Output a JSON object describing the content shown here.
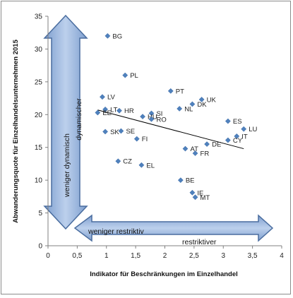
{
  "chart_data": {
    "type": "scatter",
    "title": "",
    "xlabel": "Indikator für Beschränkungen im Einzelhandel",
    "ylabel": "Abwanderungsquote für Einzelhandelsunternehmen 2015",
    "xlim": [
      0,
      4
    ],
    "ylim": [
      0,
      35
    ],
    "xticks": [
      "0",
      "0,5",
      "1",
      "1,5",
      "2",
      "2,5",
      "3",
      "3,5",
      "4"
    ],
    "yticks": [
      "0",
      "5",
      "10",
      "15",
      "20",
      "25",
      "30",
      "35"
    ],
    "grid": false,
    "marker_color": "#4f81bd",
    "points": [
      {
        "label": "BG",
        "x": 1.02,
        "y": 32.0
      },
      {
        "label": "PL",
        "x": 1.32,
        "y": 26.0
      },
      {
        "label": "PT",
        "x": 2.1,
        "y": 23.6
      },
      {
        "label": "UK",
        "x": 2.63,
        "y": 22.3
      },
      {
        "label": "LV",
        "x": 0.93,
        "y": 22.7
      },
      {
        "label": "DK",
        "x": 2.47,
        "y": 21.6
      },
      {
        "label": "NL",
        "x": 2.25,
        "y": 20.9
      },
      {
        "label": "LT",
        "x": 0.98,
        "y": 20.8
      },
      {
        "label": "EE",
        "x": 0.85,
        "y": 20.3
      },
      {
        "label": "HR",
        "x": 1.22,
        "y": 20.6
      },
      {
        "label": "SI",
        "x": 1.77,
        "y": 20.2
      },
      {
        "label": "HU",
        "x": 1.62,
        "y": 19.7
      },
      {
        "label": "RO",
        "x": 1.77,
        "y": 19.3
      },
      {
        "label": "ES",
        "x": 3.08,
        "y": 19.0
      },
      {
        "label": "LU",
        "x": 3.35,
        "y": 17.8
      },
      {
        "label": "IT",
        "x": 3.23,
        "y": 16.7
      },
      {
        "label": "CY",
        "x": 3.08,
        "y": 16.1
      },
      {
        "label": "SK",
        "x": 0.98,
        "y": 17.4
      },
      {
        "label": "SE",
        "x": 1.25,
        "y": 17.5
      },
      {
        "label": "FI",
        "x": 1.52,
        "y": 16.3
      },
      {
        "label": "DE",
        "x": 2.72,
        "y": 15.5
      },
      {
        "label": "AT",
        "x": 2.35,
        "y": 14.8
      },
      {
        "label": "FR",
        "x": 2.52,
        "y": 14.1
      },
      {
        "label": "CZ",
        "x": 1.2,
        "y": 12.9
      },
      {
        "label": "EL",
        "x": 1.6,
        "y": 12.3
      },
      {
        "label": "BE",
        "x": 2.27,
        "y": 10.0
      },
      {
        "label": "IE",
        "x": 2.47,
        "y": 8.1
      },
      {
        "label": "MT",
        "x": 2.52,
        "y": 7.4
      }
    ],
    "trendline": {
      "x": [
        0.85,
        3.35
      ],
      "y": [
        20.7,
        14.8
      ]
    },
    "annotations": {
      "vertical_arrow_top": "dynamischer",
      "vertical_arrow_bottom": "weniger dynamisch",
      "horizontal_arrow_left": "weniger restriktiv",
      "horizontal_arrow_right": "restriktiver"
    }
  }
}
